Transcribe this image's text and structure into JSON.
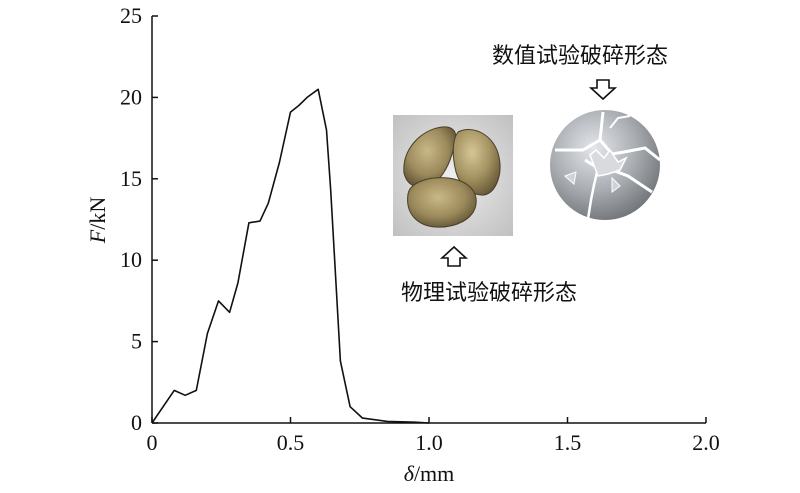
{
  "chart_data": {
    "type": "line",
    "xlabel": "δ/mm",
    "ylabel": "F/kN",
    "xlim": [
      0,
      2.0
    ],
    "ylim": [
      0,
      25
    ],
    "xticks": [
      "0",
      "0.5",
      "1.0",
      "1.5",
      "2.0"
    ],
    "xtick_values": [
      0,
      0.5,
      1.0,
      1.5,
      2.0
    ],
    "yticks": [
      "0",
      "5",
      "10",
      "15",
      "20",
      "25"
    ],
    "ytick_values": [
      0,
      5,
      10,
      15,
      20,
      25
    ],
    "grid": false,
    "series": [
      {
        "x": [
          0,
          0.08,
          0.12,
          0.16,
          0.2,
          0.24,
          0.28,
          0.31,
          0.35,
          0.39,
          0.42,
          0.46,
          0.5,
          0.53,
          0.56,
          0.6,
          0.63,
          0.645,
          0.68,
          0.715,
          0.76,
          0.85,
          0.95,
          1.0
        ],
        "y": [
          0,
          2.0,
          1.7,
          2.0,
          5.5,
          7.5,
          6.8,
          8.6,
          12.3,
          12.4,
          13.5,
          16.0,
          19.1,
          19.5,
          20.0,
          20.5,
          18.0,
          14.3,
          3.8,
          1.0,
          0.3,
          0.1,
          0.05,
          0
        ]
      }
    ],
    "annotations": [
      {
        "text": "数值试验破碎形态",
        "arrow": "down"
      },
      {
        "text": "物理试验破碎形态",
        "arrow": "up"
      }
    ]
  }
}
